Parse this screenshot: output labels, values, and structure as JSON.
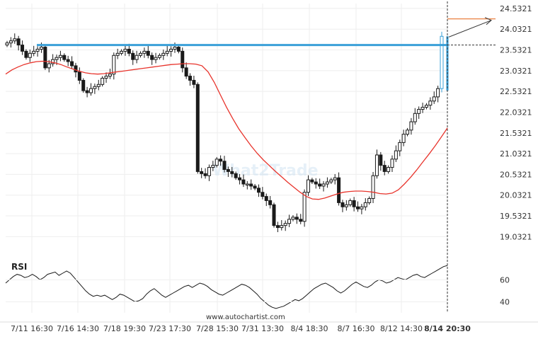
{
  "chart_data": {
    "type": "candlestick",
    "y_ticks": [
      "24.5321",
      "24.0321",
      "23.5321",
      "23.0321",
      "22.5321",
      "22.0321",
      "21.5321",
      "21.0321",
      "20.5321",
      "20.0321",
      "19.5321",
      "19.0321"
    ],
    "y_values": [
      24.5321,
      24.0321,
      23.5321,
      23.0321,
      22.5321,
      22.0321,
      21.5321,
      21.0321,
      20.5321,
      20.0321,
      19.5321,
      19.0321
    ],
    "ylim": [
      18.85,
      24.65
    ],
    "x_ticks": [
      "7/11 16:30",
      "7/16 14:30",
      "7/18 19:30",
      "7/23 17:30",
      "7/28 15:30",
      "7/31 13:30",
      "8/4 18:30",
      "8/7 16:30",
      "8/12 14:30",
      "8/14 20:30"
    ],
    "resistance_level": 23.65,
    "last_price": 23.86,
    "projected_target": 24.28,
    "closes": [
      23.7,
      23.75,
      23.8,
      23.65,
      23.5,
      23.35,
      23.45,
      23.5,
      23.55,
      23.6,
      23.1,
      23.2,
      23.3,
      23.35,
      23.4,
      23.3,
      23.25,
      23.15,
      23.0,
      22.8,
      22.55,
      22.5,
      22.6,
      22.65,
      22.7,
      22.85,
      22.9,
      22.95,
      23.4,
      23.45,
      23.5,
      23.55,
      23.45,
      23.3,
      23.4,
      23.45,
      23.5,
      23.4,
      23.3,
      23.35,
      23.4,
      23.45,
      23.5,
      23.55,
      23.6,
      23.5,
      23.1,
      22.9,
      22.8,
      22.7,
      20.6,
      20.55,
      20.5,
      20.7,
      20.75,
      20.9,
      20.85,
      20.65,
      20.6,
      20.55,
      20.45,
      20.4,
      20.3,
      20.3,
      20.25,
      20.2,
      20.1,
      20.0,
      19.9,
      19.8,
      19.3,
      19.25,
      19.3,
      19.35,
      19.45,
      19.5,
      19.45,
      19.4,
      20.1,
      20.4,
      20.35,
      20.3,
      20.25,
      20.3,
      20.35,
      20.4,
      20.45,
      19.85,
      19.75,
      19.8,
      19.9,
      19.75,
      19.7,
      19.75,
      19.85,
      19.95,
      20.5,
      21.0,
      20.75,
      20.6,
      20.7,
      20.9,
      21.1,
      21.3,
      21.5,
      21.6,
      21.8,
      22.0,
      22.1,
      22.15,
      22.2,
      22.3,
      22.4,
      22.6,
      23.86
    ],
    "ma_values": [
      22.95,
      23.05,
      23.12,
      23.18,
      23.22,
      23.25,
      23.26,
      23.25,
      23.22,
      23.18,
      23.12,
      23.07,
      23.02,
      22.98,
      22.96,
      22.95,
      22.96,
      22.98,
      23.0,
      23.02,
      23.04,
      23.06,
      23.08,
      23.1,
      23.12,
      23.14,
      23.16,
      23.18,
      23.19,
      23.2,
      23.2,
      23.19,
      23.15,
      23.0,
      22.75,
      22.45,
      22.15,
      21.88,
      21.63,
      21.42,
      21.22,
      21.04,
      20.88,
      20.74,
      20.6,
      20.47,
      20.34,
      20.22,
      20.1,
      20.0,
      19.94,
      19.93,
      19.96,
      20.01,
      20.06,
      20.1,
      20.12,
      20.13,
      20.13,
      20.12,
      20.1,
      20.07,
      20.06,
      20.08,
      20.16,
      20.3,
      20.46,
      20.64,
      20.83,
      21.02,
      21.22,
      21.43,
      21.65
    ],
    "rsi_label": "RSI",
    "rsi_ticks": [
      60,
      40
    ],
    "rsi_ylim": [
      30,
      75
    ],
    "rsi_values": [
      57,
      60,
      63,
      65,
      64,
      62,
      63,
      65,
      63,
      60,
      62,
      65,
      66,
      67,
      64,
      66,
      68,
      66,
      62,
      58,
      54,
      50,
      47,
      45,
      46,
      45,
      46,
      44,
      42,
      44,
      47,
      46,
      44,
      42,
      40,
      41,
      43,
      47,
      50,
      52,
      49,
      46,
      44,
      46,
      48,
      50,
      52,
      54,
      55,
      53,
      55,
      57,
      56,
      54,
      51,
      49,
      47,
      46,
      48,
      50,
      52,
      54,
      56,
      55,
      53,
      50,
      47,
      43,
      40,
      37,
      35,
      34,
      35,
      36,
      38,
      40,
      42,
      41,
      43,
      46,
      49,
      52,
      54,
      56,
      57,
      55,
      53,
      50,
      48,
      50,
      53,
      56,
      58,
      56,
      54,
      53,
      55,
      58,
      60,
      59,
      57,
      58,
      60,
      62,
      61,
      60,
      62,
      64,
      65,
      63,
      62,
      64,
      66,
      68,
      70,
      72,
      73
    ]
  },
  "watermark": "What2Trade",
  "footer_url": "www.autochartist.com",
  "colors": {
    "candle": "#1a1a1a",
    "candle_last": "#3aa0d8",
    "resistance": "#3aa0d8",
    "ma": "#e8342c",
    "target": "#e8722c",
    "forecast_arrow": "#333333",
    "rsi": "#1a1a1a",
    "grid": "#eeeeee"
  }
}
